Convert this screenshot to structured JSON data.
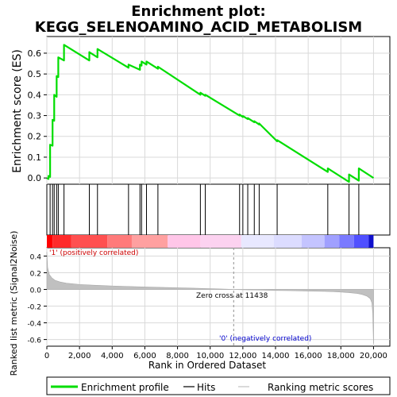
{
  "chart_data": {
    "type": "line",
    "title_line1": "Enrichment plot:",
    "title_line2": "KEGG_SELENOAMINO_ACID_METABOLISM",
    "es_ylabel": "Enrichment score (ES)",
    "metric_ylabel": "Ranked list metric (Signal2Noise)",
    "xlabel": "Rank in Ordered Dataset",
    "xlim": [
      0,
      21000
    ],
    "x_ticks": [
      0,
      2000,
      4000,
      6000,
      8000,
      10000,
      12000,
      14000,
      16000,
      18000,
      20000
    ],
    "x_tick_labels": [
      "0",
      "2,000",
      "4,000",
      "6,000",
      "8,000",
      "10,000",
      "12,000",
      "14,000",
      "16,000",
      "18,000",
      "20,000"
    ],
    "es_ylim": [
      -0.03,
      0.68
    ],
    "es_ticks": [
      0.0,
      0.1,
      0.2,
      0.3,
      0.4,
      0.5,
      0.6
    ],
    "es_tick_labels": [
      "0.0",
      "0.1",
      "0.2",
      "0.3",
      "0.4",
      "0.5",
      "0.6"
    ],
    "metric_ylim": [
      -0.68,
      0.5
    ],
    "metric_ticks": [
      -0.6,
      -0.4,
      -0.2,
      0.0,
      0.2,
      0.4
    ],
    "metric_tick_labels": [
      "-0.6",
      "-0.4",
      "-0.2",
      "0.0",
      "0.2",
      "0.4"
    ],
    "dataset_size": 20000,
    "hits": [
      200,
      350,
      450,
      600,
      700,
      1050,
      2600,
      3100,
      5000,
      5700,
      5800,
      6100,
      6800,
      9400,
      9700,
      11800,
      12000,
      12300,
      12700,
      13000,
      14100,
      17200,
      18500,
      19100
    ],
    "es_profile": {
      "x": [
        0,
        100,
        100,
        200,
        200,
        350,
        350,
        450,
        450,
        600,
        600,
        700,
        700,
        1050,
        1050,
        2600,
        2600,
        3100,
        3100,
        5000,
        5000,
        5700,
        5700,
        5800,
        5800,
        6100,
        6100,
        6800,
        6800,
        9400,
        9400,
        9700,
        9700,
        11800,
        11800,
        12000,
        12000,
        12300,
        12300,
        12700,
        12700,
        13000,
        13000,
        14100,
        14100,
        17200,
        17200,
        18500,
        18500,
        19100,
        19100,
        20000
      ],
      "y": [
        0.0,
        -0.005,
        0.01,
        0.005,
        0.16,
        0.155,
        0.28,
        0.275,
        0.4,
        0.39,
        0.49,
        0.485,
        0.58,
        0.565,
        0.64,
        0.565,
        0.605,
        0.58,
        0.62,
        0.53,
        0.545,
        0.52,
        0.545,
        0.54,
        0.56,
        0.545,
        0.56,
        0.525,
        0.535,
        0.4,
        0.41,
        0.395,
        0.4,
        0.3,
        0.305,
        0.293,
        0.298,
        0.283,
        0.288,
        0.268,
        0.273,
        0.257,
        0.262,
        0.176,
        0.182,
        0.029,
        0.046,
        -0.019,
        0.017,
        -0.013,
        0.046,
        0.0
      ]
    },
    "metric_profile": {
      "x": [
        0,
        50,
        150,
        300,
        500,
        800,
        1200,
        2000,
        3000,
        4000,
        5000,
        6000,
        7000,
        8000,
        9000,
        10000,
        11000,
        11438,
        12000,
        13000,
        14000,
        15000,
        16000,
        17000,
        17500,
        18000,
        18500,
        19000,
        19300,
        19600,
        19800,
        19900,
        19950,
        20000
      ],
      "y": [
        0.45,
        0.26,
        0.18,
        0.14,
        0.11,
        0.09,
        0.075,
        0.06,
        0.05,
        0.042,
        0.036,
        0.03,
        0.025,
        0.02,
        0.015,
        0.009,
        0.004,
        0.0,
        -0.004,
        -0.008,
        -0.012,
        -0.015,
        -0.019,
        -0.023,
        -0.027,
        -0.031,
        -0.038,
        -0.048,
        -0.06,
        -0.08,
        -0.11,
        -0.16,
        -0.28,
        -0.65
      ]
    },
    "zero_cross_label": "Zero cross at 11438",
    "zero_cross": 11438,
    "pos_label": "'1' (positively correlated)",
    "neg_label": "'0' (negatively correlated)",
    "colors": {
      "es_line": "#00dd00",
      "hits": "#000000",
      "metric_fill": "#c0c0c0",
      "grid": "#d9d9d9",
      "pos_label": "#cc0000",
      "neg_label": "#0000cc",
      "zero_cross_line": "#909090"
    },
    "heat_bands": [
      {
        "x0": 0,
        "x1": 350,
        "color": "#ff0000"
      },
      {
        "x0": 350,
        "x1": 1500,
        "color": "#ff2a2a"
      },
      {
        "x0": 1500,
        "x1": 3700,
        "color": "#ff5050"
      },
      {
        "x0": 3700,
        "x1": 5200,
        "color": "#ff7a7a"
      },
      {
        "x0": 5200,
        "x1": 7400,
        "color": "#ffa0a0"
      },
      {
        "x0": 7400,
        "x1": 9400,
        "color": "#ffc6e8"
      },
      {
        "x0": 9400,
        "x1": 11900,
        "color": "#fcd2f0"
      },
      {
        "x0": 11900,
        "x1": 13900,
        "color": "#e8e8ff"
      },
      {
        "x0": 13900,
        "x1": 15600,
        "color": "#dcdcff"
      },
      {
        "x0": 15600,
        "x1": 17000,
        "color": "#c4c4ff"
      },
      {
        "x0": 17000,
        "x1": 17900,
        "color": "#a0a0ff"
      },
      {
        "x0": 17900,
        "x1": 18800,
        "color": "#7a7aff"
      },
      {
        "x0": 18800,
        "x1": 19700,
        "color": "#5050ff"
      },
      {
        "x0": 19700,
        "x1": 20000,
        "color": "#1010cc"
      }
    ],
    "legend": [
      {
        "label": "Enrichment profile",
        "color": "#00dd00",
        "style": "line-thick"
      },
      {
        "label": "Hits",
        "color": "#000000",
        "style": "line"
      },
      {
        "label": "Ranking metric scores",
        "color": "#c0c0c0",
        "style": "line"
      }
    ]
  }
}
